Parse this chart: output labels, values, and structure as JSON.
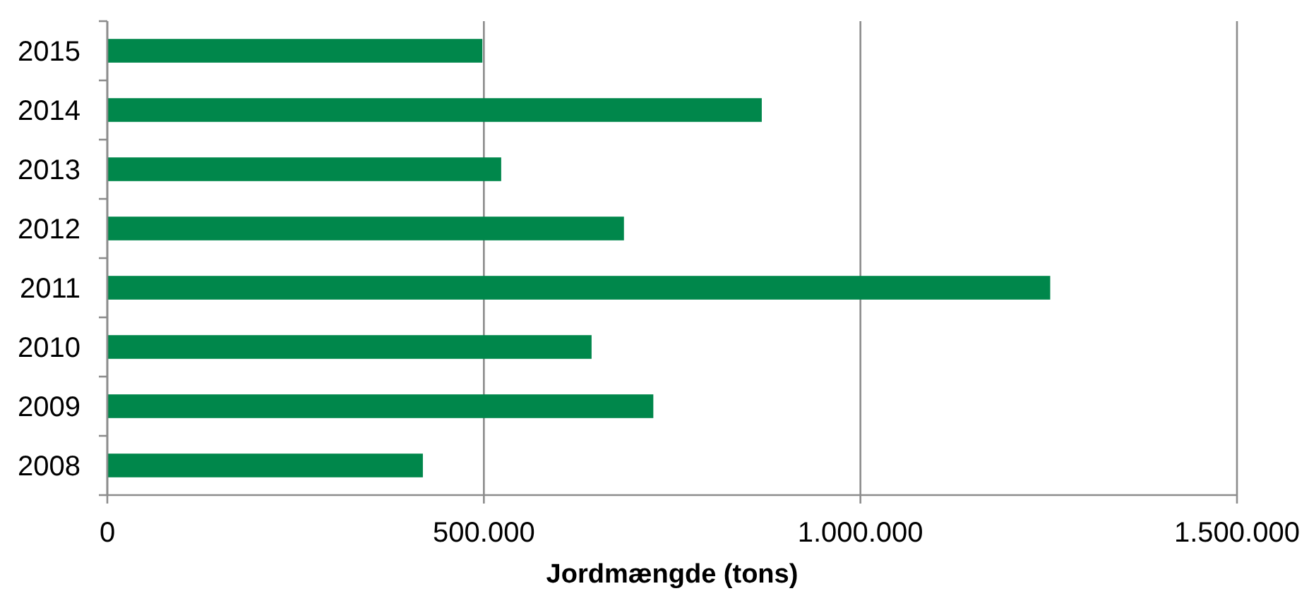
{
  "chart_data": {
    "type": "bar",
    "orientation": "horizontal",
    "categories": [
      "2015",
      "2014",
      "2013",
      "2012",
      "2011",
      "2010",
      "2009",
      "2008"
    ],
    "values": [
      498000,
      869000,
      523000,
      686000,
      1252000,
      643000,
      725000,
      419000
    ],
    "color": "#00874b",
    "xlabel": "Jordmængde (tons)",
    "xlim": [
      0,
      1500000
    ],
    "xticks": [
      0,
      {
        "value": 500000,
        "label": "500.000"
      },
      {
        "value": 1000000,
        "label": "1.000.000"
      },
      {
        "value": 1500000,
        "label": "1.500.000"
      }
    ],
    "grid": "x"
  }
}
